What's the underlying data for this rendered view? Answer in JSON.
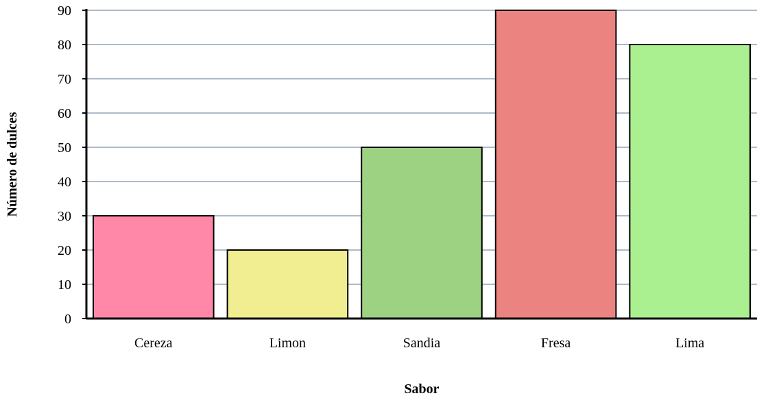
{
  "chart_data": {
    "type": "bar",
    "categories": [
      "Cereza",
      "Limon",
      "Sandia",
      "Fresa",
      "Lima"
    ],
    "values": [
      30,
      20,
      50,
      90,
      80
    ],
    "colors": [
      "#ff88a8",
      "#f0ee90",
      "#9dd283",
      "#eb8380",
      "#aaf090"
    ],
    "title": "",
    "xlabel": "Sabor",
    "ylabel": "Número de dulces",
    "ylim": [
      0,
      90
    ],
    "yticks": [
      0,
      10,
      20,
      30,
      40,
      50,
      60,
      70,
      80,
      90
    ],
    "grid": true,
    "grid_color": "#8fa3b8",
    "bar_border_color": "#000000"
  }
}
